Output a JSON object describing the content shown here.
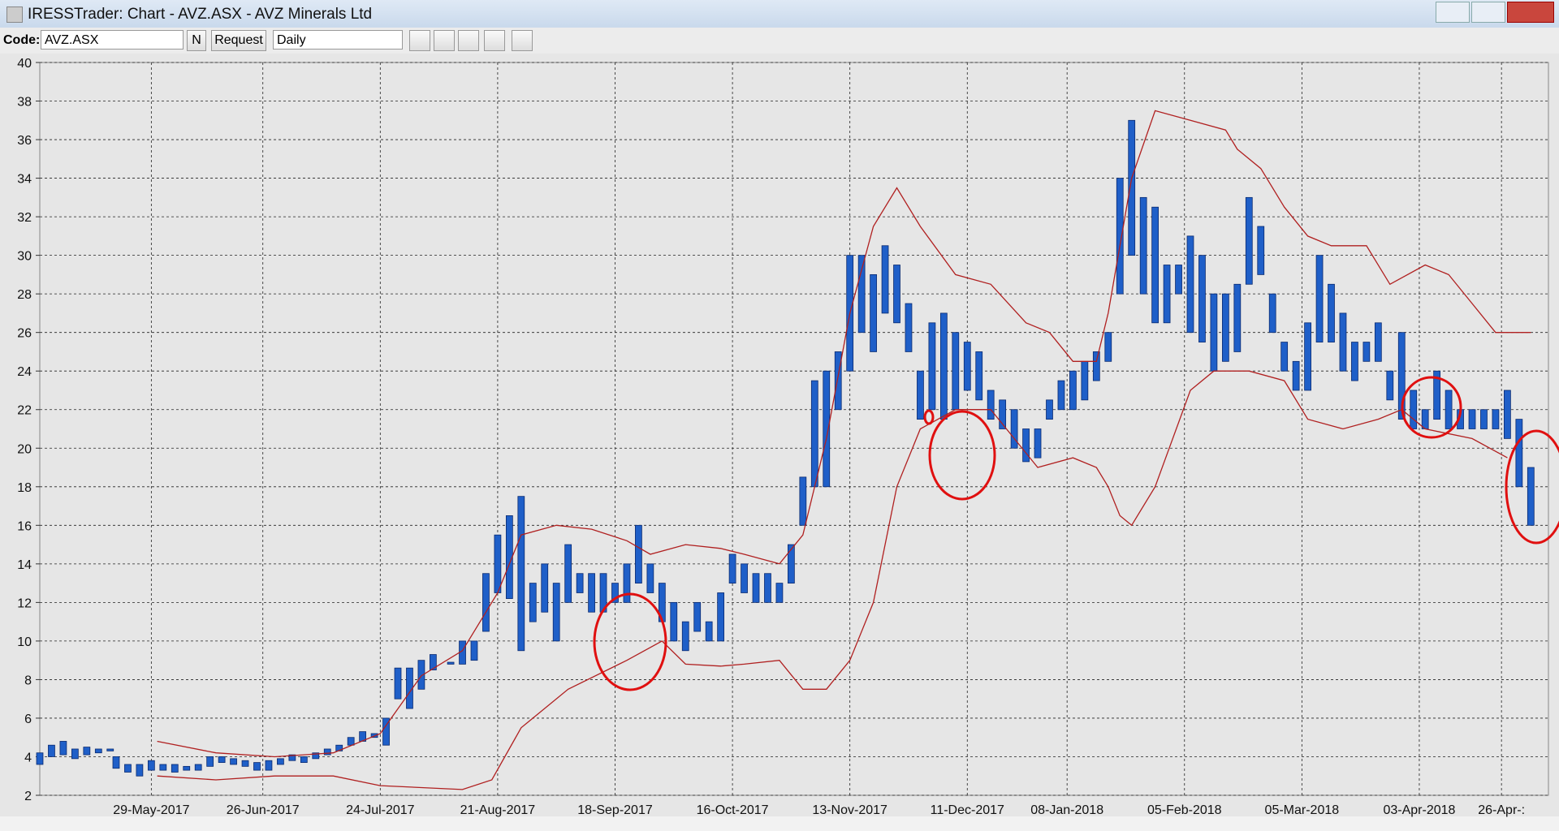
{
  "window": {
    "title": "IRESSTrader: Chart - AVZ.ASX - AVZ Minerals Ltd"
  },
  "toolbar": {
    "code_label": "Code:",
    "code_value": "AVZ.ASX",
    "n_button": "N",
    "request_button": "Request",
    "period": "Daily"
  },
  "chart_data": {
    "type": "range-bar",
    "color": "#1f5fc8",
    "grid": true,
    "xlim": [
      0,
      257
    ],
    "xticks": [
      {
        "value": 19,
        "label": "29-May-2017"
      },
      {
        "value": 38,
        "label": "26-Jun-2017"
      },
      {
        "value": 58,
        "label": "24-Jul-2017"
      },
      {
        "value": 78,
        "label": "21-Aug-2017"
      },
      {
        "value": 98,
        "label": "18-Sep-2017"
      },
      {
        "value": 118,
        "label": "16-Oct-2017"
      },
      {
        "value": 138,
        "label": "13-Nov-2017"
      },
      {
        "value": 158,
        "label": "11-Dec-2017"
      },
      {
        "value": 175,
        "label": "08-Jan-2018"
      },
      {
        "value": 195,
        "label": "05-Feb-2018"
      },
      {
        "value": 215,
        "label": "05-Mar-2018"
      },
      {
        "value": 235,
        "label": "03-Apr-2018"
      },
      {
        "value": 249,
        "label": "26-Apr-:"
      }
    ],
    "ylim": [
      2,
      40
    ],
    "yticks": [
      2,
      4,
      6,
      8,
      10,
      12,
      14,
      16,
      18,
      20,
      22,
      24,
      26,
      28,
      30,
      32,
      34,
      36,
      38,
      40
    ],
    "x": [
      0,
      2,
      4,
      6,
      8,
      10,
      12,
      13,
      15,
      17,
      19,
      21,
      23,
      25,
      27,
      29,
      31,
      33,
      35,
      37,
      39,
      41,
      43,
      45,
      47,
      49,
      51,
      53,
      55,
      57,
      59,
      61,
      63,
      65,
      67,
      70,
      72,
      74,
      76,
      78,
      80,
      82,
      84,
      86,
      88,
      90,
      92,
      94,
      96,
      98,
      100,
      102,
      104,
      106,
      108,
      110,
      112,
      114,
      116,
      118,
      120,
      122,
      124,
      126,
      128,
      130,
      132,
      134,
      136,
      138,
      140,
      142,
      144,
      146,
      148,
      150,
      152,
      154,
      156,
      158,
      160,
      162,
      164,
      166,
      168,
      170,
      172,
      174,
      176,
      178,
      180,
      182,
      184,
      186,
      188,
      190,
      192,
      194,
      196,
      198,
      200,
      202,
      204,
      206,
      208,
      210,
      212,
      214,
      216,
      218,
      220,
      222,
      224,
      226,
      228,
      230,
      232,
      234,
      236,
      238,
      240,
      242,
      244,
      246,
      248,
      250,
      252,
      254
    ],
    "low": [
      3.6,
      4.0,
      4.1,
      3.9,
      4.1,
      4.2,
      4.3,
      3.4,
      3.2,
      3.0,
      3.3,
      3.3,
      3.2,
      3.3,
      3.3,
      3.5,
      3.7,
      3.6,
      3.5,
      3.3,
      3.3,
      3.6,
      3.8,
      3.7,
      3.9,
      4.1,
      4.3,
      4.6,
      4.8,
      5.0,
      4.6,
      7.0,
      6.5,
      7.5,
      8.5,
      8.8,
      8.8,
      9.0,
      10.5,
      12.5,
      12.2,
      9.5,
      11.0,
      11.5,
      10.0,
      12.0,
      12.5,
      11.5,
      11.5,
      12.0,
      12.0,
      13.0,
      12.5,
      11.0,
      10.0,
      9.5,
      10.5,
      10.0,
      10.0,
      13.0,
      12.5,
      12.0,
      12.0,
      12.0,
      13.0,
      16.0,
      18.0,
      18.0,
      22.0,
      24.0,
      26.0,
      25.0,
      27.0,
      26.5,
      25.0,
      21.5,
      22.0,
      21.5,
      22.0,
      23.0,
      22.5,
      21.5,
      21.0,
      20.0,
      19.3,
      19.5,
      21.5,
      22.0,
      22.0,
      22.5,
      23.5,
      24.5,
      28.0,
      30.0,
      28.0,
      26.5,
      26.5,
      28.0,
      26.0,
      25.5,
      24.0,
      24.5,
      25.0,
      28.5,
      29.0,
      26.0,
      24.0,
      23.0,
      23.0,
      25.5,
      25.5,
      24.0,
      23.5,
      24.5,
      24.5,
      22.5,
      21.5,
      21.0,
      21.0,
      21.5,
      21.0,
      21.0,
      21.0,
      21.0,
      21.0,
      20.5,
      18.0,
      16.0
    ],
    "high": [
      4.2,
      4.6,
      4.8,
      4.4,
      4.5,
      4.4,
      4.4,
      4.0,
      3.6,
      3.6,
      3.8,
      3.6,
      3.6,
      3.5,
      3.6,
      4.0,
      4.0,
      3.9,
      3.8,
      3.7,
      3.8,
      3.9,
      4.1,
      4.0,
      4.2,
      4.4,
      4.6,
      5.0,
      5.3,
      5.2,
      6.0,
      8.6,
      8.6,
      9.0,
      9.3,
      8.9,
      10.0,
      10.0,
      13.5,
      15.5,
      16.5,
      17.5,
      13.0,
      14.0,
      13.0,
      15.0,
      13.5,
      13.5,
      13.5,
      13.0,
      14.0,
      16.0,
      14.0,
      13.0,
      12.0,
      11.0,
      12.0,
      11.0,
      12.5,
      14.5,
      14.0,
      13.5,
      13.5,
      13.0,
      15.0,
      18.5,
      23.5,
      24.0,
      25.0,
      30.0,
      30.0,
      29.0,
      30.5,
      29.5,
      27.5,
      24.0,
      26.5,
      27.0,
      26.0,
      25.5,
      25.0,
      23.0,
      22.5,
      22.0,
      21.0,
      21.0,
      22.5,
      23.5,
      24.0,
      24.5,
      25.0,
      26.0,
      34.0,
      37.0,
      33.0,
      32.5,
      29.5,
      29.5,
      31.0,
      30.0,
      28.0,
      28.0,
      28.5,
      33.0,
      31.5,
      28.0,
      25.5,
      24.5,
      26.5,
      30.0,
      28.5,
      27.0,
      25.5,
      25.5,
      26.5,
      24.0,
      26.0,
      23.0,
      22.0,
      24.0,
      23.0,
      22.0,
      22.0,
      22.0,
      22.0,
      23.0,
      21.5,
      19.0
    ],
    "bands": [
      {
        "color": "#b02020",
        "x": [
          20,
          30,
          40,
          50,
          58,
          65,
          72,
          78,
          82,
          88,
          94,
          100,
          104,
          110,
          116,
          120,
          126,
          130,
          134,
          138,
          142,
          146,
          150,
          156,
          162,
          168,
          172,
          176,
          180,
          182,
          186,
          190,
          196,
          202,
          204,
          208,
          212,
          216,
          220,
          226,
          230,
          236,
          240,
          244,
          248,
          254
        ],
        "values": [
          4.8,
          4.2,
          4.0,
          4.2,
          5.2,
          8.2,
          9.5,
          12.5,
          15.5,
          16.0,
          15.8,
          15.2,
          14.5,
          15.0,
          14.8,
          14.5,
          14.0,
          15.5,
          20.5,
          27.0,
          31.5,
          33.5,
          31.5,
          29.0,
          28.5,
          26.5,
          26.0,
          24.5,
          24.5,
          27.0,
          34.0,
          37.5,
          37.0,
          36.5,
          35.5,
          34.5,
          32.5,
          31.0,
          30.5,
          30.5,
          28.5,
          29.5,
          29.0,
          27.5,
          26.0,
          26.0
        ]
      },
      {
        "color": "#b02020",
        "x": [
          20,
          30,
          40,
          50,
          58,
          65,
          72,
          77,
          82,
          90,
          100,
          106,
          110,
          116,
          120,
          126,
          130,
          134,
          138,
          142,
          146,
          150,
          156,
          162,
          166,
          170,
          176,
          180,
          182,
          184,
          186,
          190,
          196,
          200,
          206,
          212,
          216,
          222,
          228,
          232,
          236,
          244,
          250
        ],
        "values": [
          3.0,
          2.8,
          3.0,
          3.0,
          2.5,
          2.4,
          2.3,
          2.8,
          5.5,
          7.5,
          9.0,
          10.0,
          8.8,
          8.7,
          8.8,
          9.0,
          7.5,
          7.5,
          9.0,
          12.0,
          18.0,
          21.0,
          22.0,
          22.0,
          20.5,
          19.0,
          19.5,
          19.0,
          18.0,
          16.5,
          16.0,
          18.0,
          23.0,
          24.0,
          24.0,
          23.5,
          21.5,
          21.0,
          21.5,
          22.0,
          21.0,
          20.5,
          19.5
        ]
      }
    ]
  }
}
